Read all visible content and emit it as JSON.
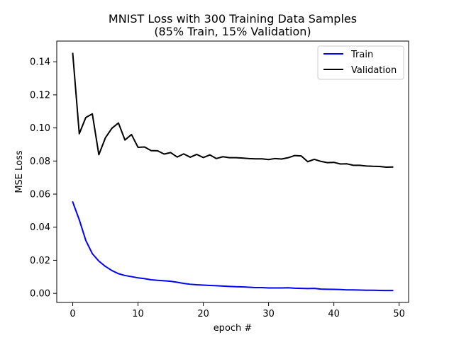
{
  "chart_data": {
    "type": "line",
    "title": "MNIST Loss with 300 Training Data Samples",
    "subtitle": "(85% Train, 15% Validation)",
    "xlabel": "epoch #",
    "ylabel": "MSE Loss",
    "xlim": [
      -2.45,
      51.45
    ],
    "ylim": [
      -0.0055,
      0.1525
    ],
    "x_ticks": [
      0,
      10,
      20,
      30,
      40,
      50
    ],
    "y_ticks": [
      0.0,
      0.02,
      0.04,
      0.06,
      0.08,
      0.1,
      0.12,
      0.14
    ],
    "y_tick_labels": [
      "0.00",
      "0.02",
      "0.04",
      "0.06",
      "0.08",
      "0.10",
      "0.12",
      "0.14"
    ],
    "x_tick_labels": [
      "0",
      "10",
      "20",
      "30",
      "40",
      "50"
    ],
    "grid": false,
    "legend_position": "top-right",
    "x": [
      0,
      1,
      2,
      3,
      4,
      5,
      6,
      7,
      8,
      9,
      10,
      11,
      12,
      13,
      14,
      15,
      16,
      17,
      18,
      19,
      20,
      21,
      22,
      23,
      24,
      25,
      26,
      27,
      28,
      29,
      30,
      31,
      32,
      33,
      34,
      35,
      36,
      37,
      38,
      39,
      40,
      41,
      42,
      43,
      44,
      45,
      46,
      47,
      48,
      49
    ],
    "series": [
      {
        "name": "Train",
        "color": "#0000ff",
        "values": [
          0.0552,
          0.0445,
          0.032,
          0.024,
          0.0195,
          0.0163,
          0.0138,
          0.0119,
          0.0108,
          0.0101,
          0.0094,
          0.0089,
          0.0082,
          0.0079,
          0.0076,
          0.0073,
          0.0067,
          0.006,
          0.0055,
          0.0052,
          0.005,
          0.0048,
          0.0046,
          0.0044,
          0.0042,
          0.004,
          0.0039,
          0.0037,
          0.0035,
          0.0035,
          0.0033,
          0.0033,
          0.0033,
          0.0034,
          0.0031,
          0.003,
          0.0029,
          0.003,
          0.0026,
          0.0025,
          0.0024,
          0.0023,
          0.0021,
          0.0021,
          0.002,
          0.0019,
          0.0019,
          0.0018,
          0.0017,
          0.0017
        ]
      },
      {
        "name": "Validation",
        "color": "#000000",
        "values": [
          0.145,
          0.0965,
          0.1063,
          0.1085,
          0.0838,
          0.094,
          0.0998,
          0.103,
          0.0927,
          0.096,
          0.0883,
          0.0885,
          0.0863,
          0.0862,
          0.0842,
          0.0851,
          0.0824,
          0.0843,
          0.0823,
          0.084,
          0.0821,
          0.0837,
          0.0815,
          0.0826,
          0.082,
          0.082,
          0.0818,
          0.0815,
          0.0813,
          0.0813,
          0.0809,
          0.0815,
          0.0812,
          0.082,
          0.0833,
          0.0831,
          0.0796,
          0.081,
          0.0798,
          0.079,
          0.0792,
          0.0782,
          0.0783,
          0.0774,
          0.0774,
          0.077,
          0.0768,
          0.0767,
          0.0763,
          0.0764
        ]
      }
    ]
  }
}
